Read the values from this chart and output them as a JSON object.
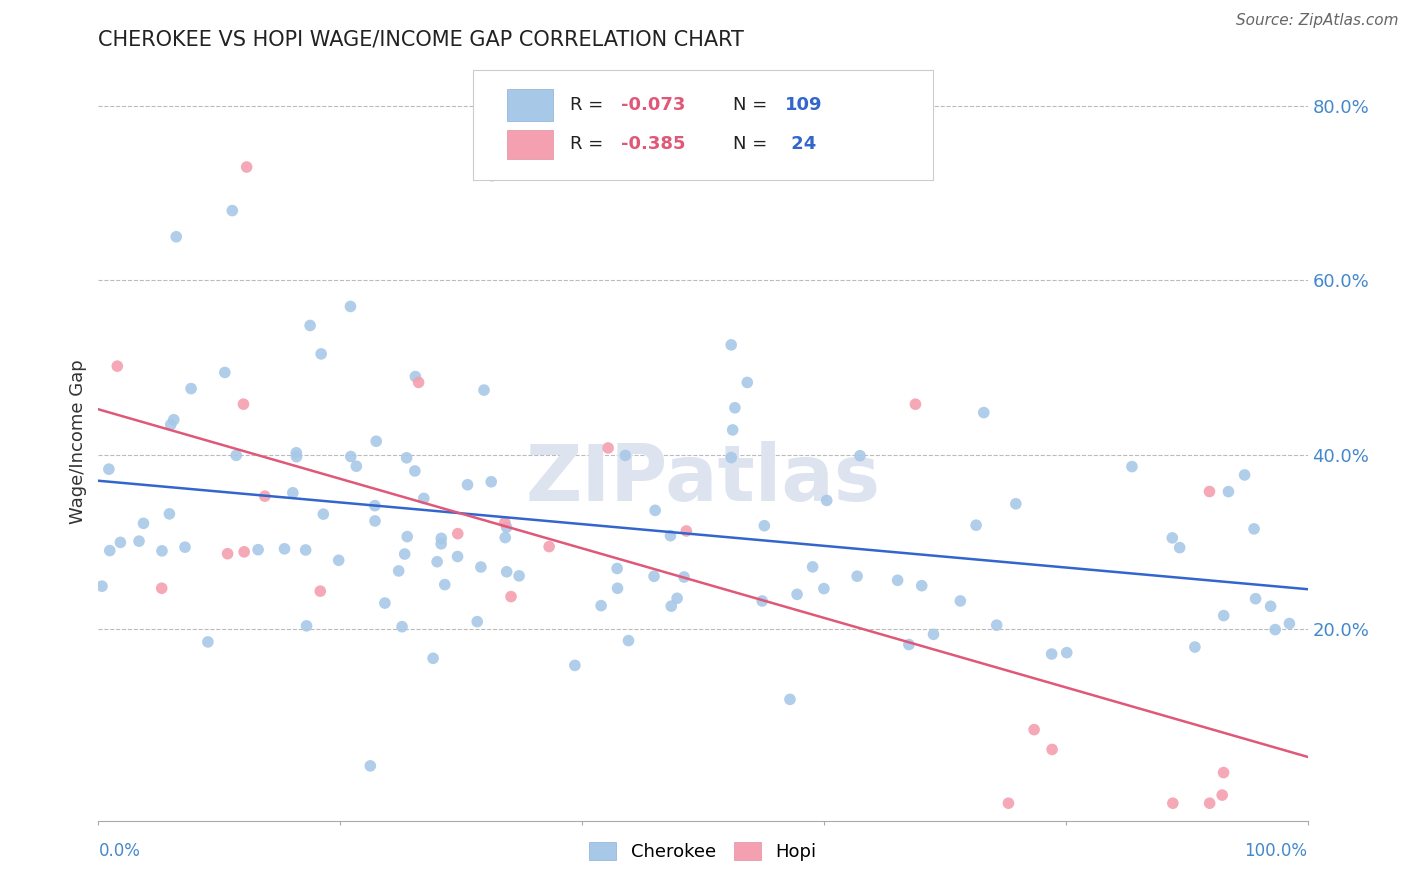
{
  "title": "CHEROKEE VS HOPI WAGE/INCOME GAP CORRELATION CHART",
  "source": "Source: ZipAtlas.com",
  "ylabel": "Wage/Income Gap",
  "cherokee_color": "#a8c8e8",
  "hopi_color": "#f4a0b0",
  "cherokee_line_color": "#3366cc",
  "hopi_line_color": "#e05878",
  "cherokee_R": -0.073,
  "cherokee_N": 109,
  "hopi_R": -0.385,
  "hopi_N": 24,
  "xlim": [
    0.0,
    1.0
  ],
  "ylim": [
    -0.02,
    0.85
  ],
  "title_color": "#222222",
  "source_color": "#666666",
  "background_color": "#ffffff",
  "grid_color": "#bbbbbb",
  "watermark_text": "ZIPatlas",
  "watermark_color": "#dde4f0",
  "legend_R_color": "#e05878",
  "legend_N_color": "#3366cc",
  "legend_text_color": "#222222",
  "ytick_color": "#4488cc",
  "xtick_color": "#4488cc"
}
